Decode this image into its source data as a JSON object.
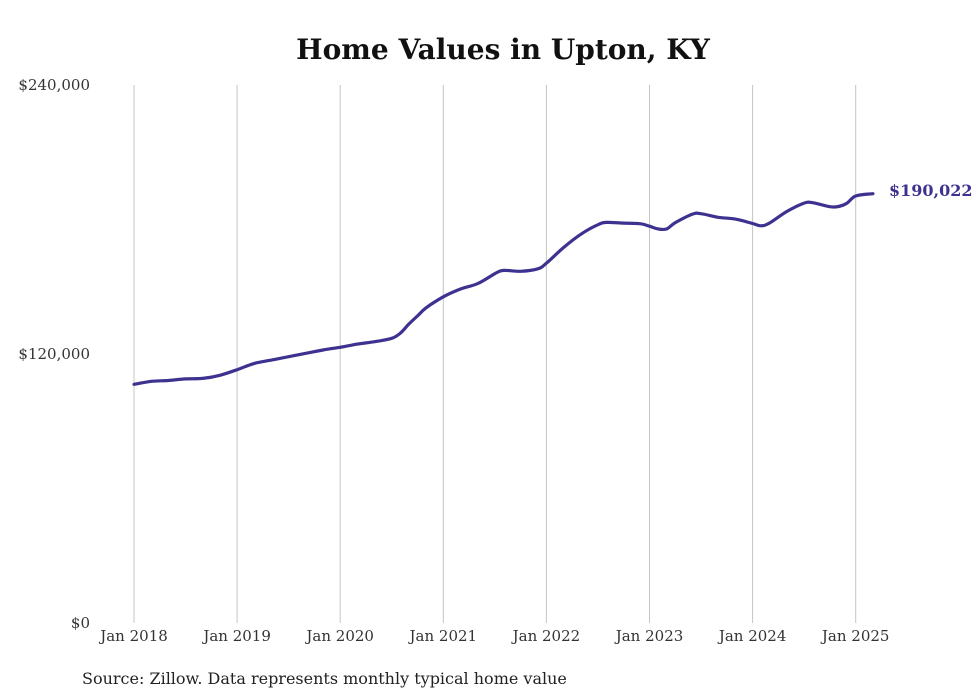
{
  "colors": {
    "line": "#3d3290",
    "grid": "#c4c4c4",
    "text": "#333333"
  },
  "chart_data": {
    "type": "line",
    "title": "Home Values in Upton, KY",
    "xlabel": "",
    "ylabel": "",
    "ylim": [
      0,
      240000
    ],
    "y_ticks": [
      {
        "value": 0,
        "label": "$0"
      },
      {
        "value": 120000,
        "label": "$120,000"
      },
      {
        "value": 240000,
        "label": "$240,000"
      }
    ],
    "x_ticks": [
      "Jan 2018",
      "Jan 2019",
      "Jan 2020",
      "Jan 2021",
      "Jan 2022",
      "Jan 2023",
      "Jan 2024",
      "Jan 2025"
    ],
    "grid": "vertical",
    "end_label": "$190,022",
    "source": "Source: Zillow. Data represents monthly typical home value",
    "series": [
      {
        "values": [
          [
            "2018-01",
            106500
          ],
          [
            "2018-03",
            107800
          ],
          [
            "2018-05",
            108200
          ],
          [
            "2018-07",
            108900
          ],
          [
            "2018-09",
            109100
          ],
          [
            "2018-11",
            110500
          ],
          [
            "2019-01",
            113000
          ],
          [
            "2019-03",
            115800
          ],
          [
            "2019-05",
            117300
          ],
          [
            "2019-07",
            118800
          ],
          [
            "2019-09",
            120300
          ],
          [
            "2019-11",
            121800
          ],
          [
            "2020-01",
            123000
          ],
          [
            "2020-03",
            124400
          ],
          [
            "2020-05",
            125500
          ],
          [
            "2020-07",
            127000
          ],
          [
            "2020-08",
            129300
          ],
          [
            "2020-09",
            133400
          ],
          [
            "2020-10",
            137000
          ],
          [
            "2020-11",
            140600
          ],
          [
            "2021-01",
            145500
          ],
          [
            "2021-03",
            149000
          ],
          [
            "2021-05",
            151400
          ],
          [
            "2021-07",
            155800
          ],
          [
            "2021-08",
            157300
          ],
          [
            "2021-10",
            156900
          ],
          [
            "2021-12",
            158000
          ],
          [
            "2022-01",
            160500
          ],
          [
            "2022-03",
            167500
          ],
          [
            "2022-05",
            173400
          ],
          [
            "2022-07",
            177700
          ],
          [
            "2022-08",
            178700
          ],
          [
            "2022-10",
            178400
          ],
          [
            "2022-12",
            178100
          ],
          [
            "2023-01",
            177000
          ],
          [
            "2023-02",
            175800
          ],
          [
            "2023-03",
            175800
          ],
          [
            "2023-04",
            178600
          ],
          [
            "2023-06",
            182400
          ],
          [
            "2023-07",
            182600
          ],
          [
            "2023-09",
            181000
          ],
          [
            "2023-11",
            180200
          ],
          [
            "2024-01",
            178200
          ],
          [
            "2024-02",
            177200
          ],
          [
            "2024-03",
            178500
          ],
          [
            "2024-05",
            183600
          ],
          [
            "2024-07",
            187300
          ],
          [
            "2024-08",
            187500
          ],
          [
            "2024-10",
            185700
          ],
          [
            "2024-11",
            185800
          ],
          [
            "2024-12",
            187300
          ],
          [
            "2025-01",
            190500
          ],
          [
            "2025-03",
            191500
          ]
        ]
      }
    ]
  }
}
